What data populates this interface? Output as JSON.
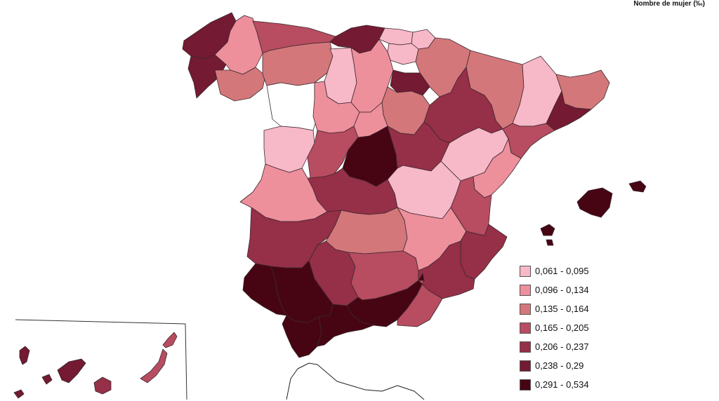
{
  "map": {
    "title": "Nombre de mujer (‰)",
    "legend": [
      {
        "label": "0,061 - 0,095",
        "color": "#f7b8c8"
      },
      {
        "label": "0,096 - 0,134",
        "color": "#ee8f9c"
      },
      {
        "label": "0,135 - 0,164",
        "color": "#d4777a"
      },
      {
        "label": "0,165 - 0,205",
        "color": "#b84c60"
      },
      {
        "label": "0,206 - 0,237",
        "color": "#962f48"
      },
      {
        "label": "0,238 - 0,29",
        "color": "#741a32"
      },
      {
        "label": "0,291 - 0,534",
        "color": "#470514"
      }
    ],
    "no_data_color": "#ffffff"
  }
}
